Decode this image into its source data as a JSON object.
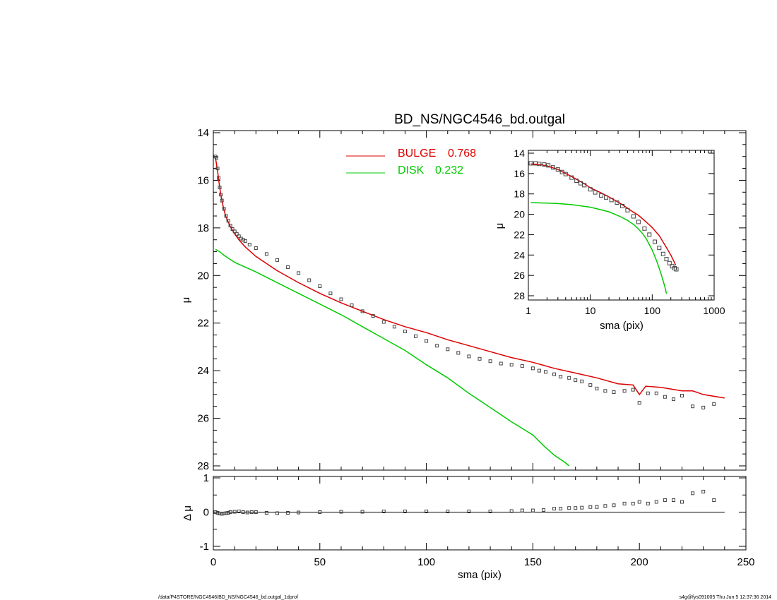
{
  "chart_data": [
    {
      "id": "main",
      "type": "line",
      "title": "BD_NS/NGC4546_bd.outgal",
      "xlabel": "",
      "ylabel": "μ",
      "xlim": [
        0,
        250
      ],
      "ylim": [
        28,
        14
      ],
      "yticks": [
        14,
        16,
        18,
        20,
        22,
        24,
        26,
        28
      ],
      "legend": [
        {
          "label": "BULGE",
          "value": "0.768",
          "color": "#dd0000"
        },
        {
          "label": "DISK",
          "value": "0.232",
          "color": "#00cc00"
        }
      ],
      "series": [
        {
          "name": "BULGE",
          "color": "#dd0000",
          "style": "line",
          "x": [
            1,
            2,
            3,
            4,
            5,
            6,
            8,
            10,
            12,
            15,
            20,
            25,
            30,
            35,
            40,
            50,
            60,
            70,
            80,
            90,
            100,
            110,
            120,
            130,
            140,
            150,
            160,
            170,
            180,
            190,
            197,
            200,
            203,
            210,
            220,
            225,
            230,
            240
          ],
          "y": [
            15.05,
            15.6,
            16.3,
            16.85,
            17.25,
            17.55,
            17.95,
            18.25,
            18.5,
            18.8,
            19.2,
            19.5,
            19.8,
            20.05,
            20.3,
            20.75,
            21.15,
            21.5,
            21.85,
            22.15,
            22.4,
            22.7,
            22.95,
            23.2,
            23.45,
            23.65,
            23.9,
            24.1,
            24.3,
            24.55,
            24.6,
            25.0,
            24.65,
            24.7,
            24.85,
            24.85,
            25.0,
            25.15
          ]
        },
        {
          "name": "DISK",
          "color": "#00cc00",
          "style": "line",
          "x": [
            1,
            3,
            5,
            10,
            20,
            30,
            40,
            50,
            60,
            70,
            80,
            90,
            100,
            110,
            120,
            130,
            140,
            150,
            155,
            160,
            165,
            167
          ],
          "y": [
            18.9,
            19.0,
            19.15,
            19.45,
            19.85,
            20.3,
            20.75,
            21.2,
            21.65,
            22.15,
            22.65,
            23.15,
            23.75,
            24.3,
            24.95,
            25.55,
            26.15,
            26.7,
            27.15,
            27.55,
            27.85,
            28.0
          ]
        },
        {
          "name": "",
          "color": "#555555",
          "style": "markers",
          "x": [
            1,
            1.5,
            2,
            2.5,
            3,
            3.5,
            4,
            5,
            6,
            7,
            8,
            9,
            10,
            11,
            12,
            13,
            14,
            15,
            17,
            20,
            25,
            30,
            35,
            40,
            45,
            50,
            55,
            60,
            65,
            70,
            75,
            80,
            85,
            90,
            95,
            100,
            105,
            110,
            115,
            120,
            125,
            130,
            135,
            140,
            145,
            150,
            153,
            156,
            160,
            163,
            167,
            170,
            173,
            177,
            180,
            184,
            188,
            193,
            197,
            200,
            204,
            208,
            212,
            216,
            220,
            225,
            230,
            235
          ],
          "y": [
            15.0,
            15.05,
            15.5,
            15.9,
            16.3,
            16.6,
            16.85,
            17.2,
            17.5,
            17.7,
            17.9,
            18.05,
            18.15,
            18.25,
            18.35,
            18.45,
            18.5,
            18.55,
            18.7,
            18.85,
            19.1,
            19.35,
            19.65,
            19.9,
            20.2,
            20.45,
            20.75,
            21.0,
            21.25,
            21.5,
            21.7,
            21.95,
            22.15,
            22.35,
            22.55,
            22.75,
            22.95,
            23.1,
            23.25,
            23.4,
            23.5,
            23.6,
            23.7,
            23.75,
            23.8,
            23.9,
            24.0,
            24.05,
            24.15,
            24.25,
            24.3,
            24.4,
            24.45,
            24.6,
            24.75,
            24.85,
            24.9,
            24.85,
            24.8,
            25.35,
            24.95,
            24.95,
            25.1,
            25.2,
            25.05,
            25.5,
            25.55,
            25.4
          ]
        }
      ]
    },
    {
      "id": "inset",
      "type": "line",
      "xlabel": "sma (pix)",
      "ylabel": "μ",
      "xscale": "log",
      "xlim": [
        1,
        1000
      ],
      "ylim": [
        28,
        14
      ],
      "xticks": [
        1,
        10,
        100,
        1000
      ],
      "yticks": [
        14,
        16,
        18,
        20,
        22,
        24,
        26,
        28
      ],
      "series": [
        {
          "name": "BULGE",
          "color": "#dd0000",
          "style": "line",
          "x": [
            1.1,
            1.5,
            2,
            3,
            5,
            8,
            10,
            15,
            20,
            30,
            40,
            50,
            60,
            80,
            100,
            130,
            160,
            200,
            240
          ],
          "y": [
            15.05,
            15.1,
            15.25,
            15.6,
            16.3,
            17.0,
            17.4,
            17.9,
            18.3,
            18.9,
            19.4,
            19.8,
            20.1,
            20.75,
            21.3,
            22.1,
            23.0,
            24.0,
            25.0
          ]
        },
        {
          "name": "DISK",
          "color": "#00cc00",
          "style": "line",
          "x": [
            1.1,
            2,
            3,
            5,
            10,
            20,
            30,
            40,
            50,
            60,
            70,
            80,
            100,
            120,
            140,
            160,
            170
          ],
          "y": [
            18.85,
            18.9,
            18.95,
            19.05,
            19.3,
            19.75,
            20.2,
            20.6,
            21.0,
            21.45,
            21.9,
            22.4,
            23.5,
            24.7,
            25.9,
            27.1,
            27.8
          ]
        },
        {
          "name": "",
          "color": "#555555",
          "style": "markers",
          "x": [
            1.1,
            1.3,
            1.5,
            1.8,
            2.1,
            2.5,
            3,
            3.5,
            4,
            5,
            6,
            7,
            8,
            10,
            12,
            15,
            18,
            22,
            27,
            33,
            40,
            50,
            60,
            75,
            90,
            110,
            130,
            150,
            170,
            190,
            210,
            230,
            245
          ],
          "y": [
            15.0,
            15.0,
            15.05,
            15.1,
            15.2,
            15.4,
            15.6,
            15.85,
            16.05,
            16.4,
            16.7,
            16.95,
            17.15,
            17.55,
            17.85,
            18.15,
            18.35,
            18.6,
            18.85,
            19.2,
            19.6,
            20.2,
            20.75,
            21.4,
            22.0,
            22.7,
            23.3,
            23.9,
            24.4,
            24.8,
            25.1,
            25.3,
            25.4
          ]
        }
      ]
    },
    {
      "id": "residual",
      "type": "scatter",
      "xlabel": "sma (pix)",
      "ylabel": "Δ μ",
      "xlim": [
        0,
        250
      ],
      "ylim": [
        -1,
        1
      ],
      "xticks": [
        0,
        50,
        100,
        150,
        200,
        250
      ],
      "yticks": [
        -1,
        0,
        1
      ],
      "series": [
        {
          "name": "",
          "color": "#444444",
          "style": "markers",
          "x": [
            1,
            2,
            3,
            4,
            5,
            6,
            7,
            8,
            10,
            12,
            14,
            16,
            18,
            20,
            25,
            30,
            35,
            40,
            50,
            60,
            70,
            80,
            90,
            100,
            110,
            120,
            130,
            140,
            145,
            150,
            155,
            160,
            163,
            167,
            170,
            173,
            177,
            180,
            184,
            188,
            193,
            197,
            200,
            204,
            208,
            212,
            216,
            220,
            225,
            230,
            235
          ],
          "y": [
            0.0,
            -0.02,
            -0.04,
            -0.05,
            -0.04,
            -0.03,
            -0.02,
            0.0,
            0.01,
            0.02,
            0.0,
            -0.01,
            0.0,
            0.0,
            -0.02,
            -0.03,
            -0.02,
            -0.01,
            0.0,
            0.01,
            0.01,
            0.02,
            0.02,
            0.02,
            0.02,
            0.02,
            0.02,
            0.03,
            0.05,
            0.05,
            0.06,
            0.1,
            0.1,
            0.12,
            0.12,
            0.13,
            0.15,
            0.15,
            0.18,
            0.2,
            0.25,
            0.25,
            0.3,
            0.25,
            0.3,
            0.35,
            0.35,
            0.3,
            0.55,
            0.6,
            0.35
          ]
        }
      ]
    }
  ],
  "footer": {
    "left": "/data/P4STORE/NGC4546/BD_NS/NGC4546_bd.outgal_1dprof",
    "right": "s4g@fys091005  Thu Jun  5 12:37:36 2014"
  }
}
